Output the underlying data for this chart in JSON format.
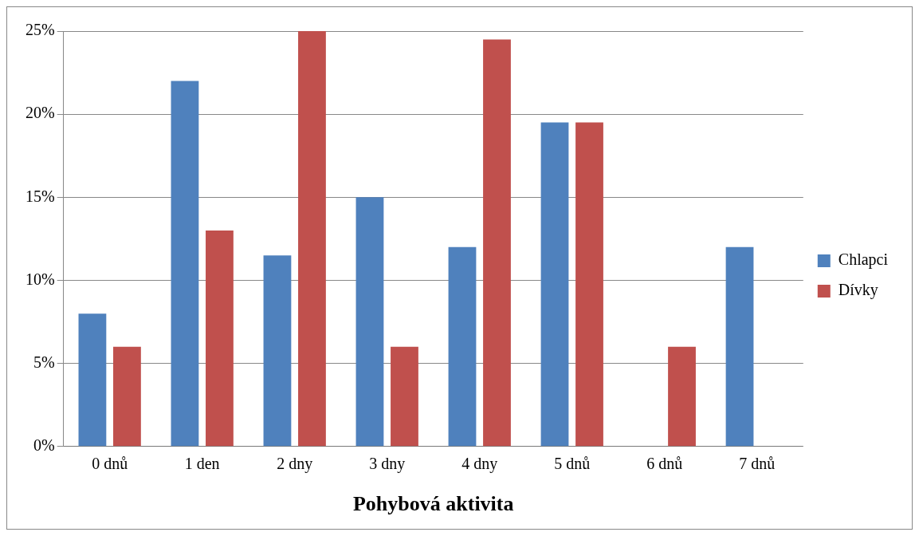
{
  "chart_data": {
    "type": "bar",
    "xlabel": "Pohybová aktivita",
    "categories": [
      "0 dnů",
      "1 den",
      "2 dny",
      "3 dny",
      "4 dny",
      "5 dnů",
      "6 dnů",
      "7 dnů"
    ],
    "series": [
      {
        "name": "Chlapci",
        "color": "#4f81bd",
        "values": [
          8,
          22,
          11.5,
          15,
          12,
          19.5,
          0,
          12
        ]
      },
      {
        "name": "Dívky",
        "color": "#c0504d",
        "values": [
          6,
          13,
          25,
          6,
          24.5,
          19.5,
          6,
          0
        ]
      }
    ],
    "ylim": [
      0,
      25
    ],
    "yticks": [
      {
        "value": 0,
        "label": "0%"
      },
      {
        "value": 5,
        "label": "5%"
      },
      {
        "value": 10,
        "label": "10%"
      },
      {
        "value": 15,
        "label": "15%"
      },
      {
        "value": 20,
        "label": "20%"
      },
      {
        "value": 25,
        "label": "25%"
      }
    ],
    "grid": "y",
    "legend": "right"
  }
}
